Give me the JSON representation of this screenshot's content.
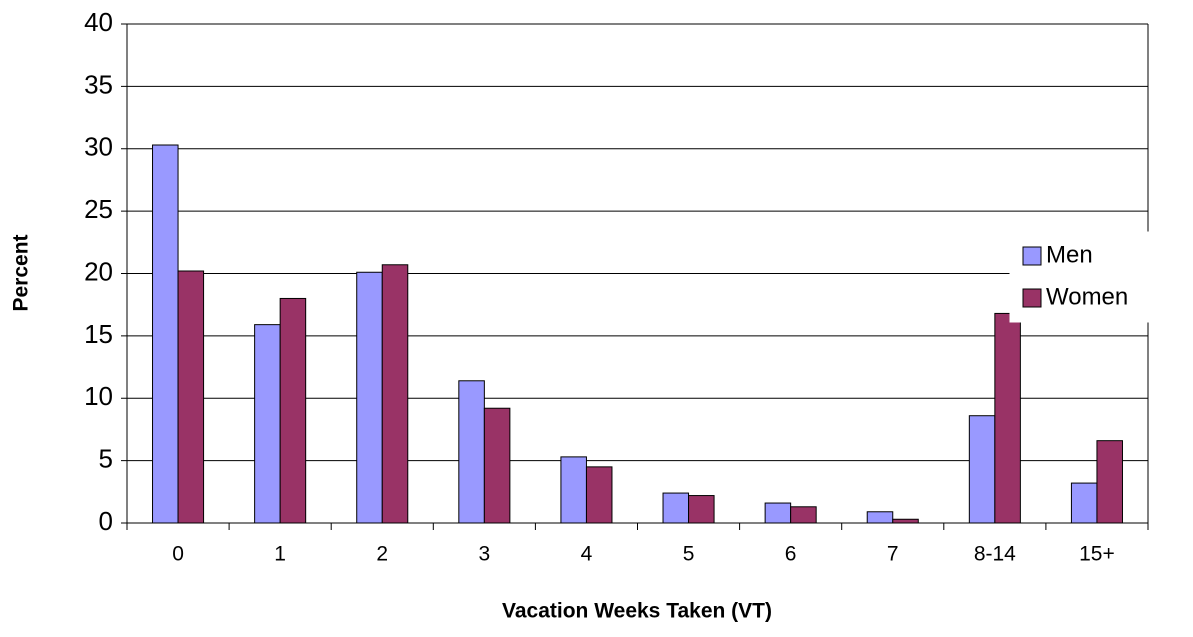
{
  "chart_data": {
    "type": "bar",
    "x_label": "Vacation Weeks Taken (VT)",
    "y_label": "Percent",
    "categories": [
      "0",
      "1",
      "2",
      "3",
      "4",
      "5",
      "6",
      "7",
      "8-14",
      "15+"
    ],
    "series": [
      {
        "name": "Men",
        "color": "#9999ff",
        "values": [
          30.3,
          15.9,
          20.1,
          11.4,
          5.3,
          2.4,
          1.6,
          0.9,
          8.6,
          3.2
        ]
      },
      {
        "name": "Women",
        "color": "#993366",
        "values": [
          20.2,
          18.0,
          20.7,
          9.2,
          4.5,
          2.2,
          1.3,
          0.3,
          16.8,
          6.6
        ]
      }
    ],
    "ylim": [
      0,
      40
    ],
    "yticks": [
      0,
      5,
      10,
      15,
      20,
      25,
      30,
      35,
      40
    ],
    "grid": true,
    "legend": "right"
  }
}
